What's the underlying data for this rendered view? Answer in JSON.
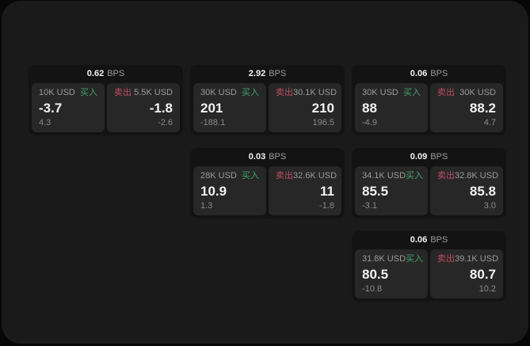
{
  "colors": {
    "outer_bg": "#070707",
    "screen_bg": "#1a1a1a",
    "card_bg": "#131313",
    "panel_bg": "#272727",
    "label_gray": "#9a9a9a",
    "sub_gray": "#8b8b8b",
    "value_white": "#f2f2f2",
    "buy_green": "#41a16b",
    "sell_red": "#bc4d61"
  },
  "labels": {
    "bps_unit": "BPS",
    "buy": "买入",
    "sell": "卖出"
  },
  "cards": [
    {
      "row": 1,
      "col": 1,
      "bps": "0.62",
      "buy": {
        "amount": "10K USD",
        "value": "-3.7",
        "sub": "4.3"
      },
      "sell": {
        "amount": "5.5K USD",
        "value": "-1.8",
        "sub": "-2.6"
      }
    },
    {
      "row": 1,
      "col": 2,
      "bps": "2.92",
      "buy": {
        "amount": "30K USD",
        "value": "201",
        "sub": "-188.1"
      },
      "sell": {
        "amount": "30.1K USD",
        "value": "210",
        "sub": "196.5"
      }
    },
    {
      "row": 1,
      "col": 3,
      "bps": "0.06",
      "buy": {
        "amount": "30K USD",
        "value": "88",
        "sub": "-4.9"
      },
      "sell": {
        "amount": "30K USD",
        "value": "88.2",
        "sub": "4.7"
      }
    },
    {
      "row": 2,
      "col": 2,
      "bps": "0.03",
      "buy": {
        "amount": "28K USD",
        "value": "10.9",
        "sub": "1.3"
      },
      "sell": {
        "amount": "32.6K USD",
        "value": "11",
        "sub": "-1.8"
      }
    },
    {
      "row": 2,
      "col": 3,
      "bps": "0.09",
      "buy": {
        "amount": "34.1K USD",
        "value": "85.5",
        "sub": "-3.1"
      },
      "sell": {
        "amount": "32.8K USD",
        "value": "85.8",
        "sub": "3.0"
      }
    },
    {
      "row": 3,
      "col": 3,
      "bps": "0.06",
      "buy": {
        "amount": "31.8K USD",
        "value": "80.5",
        "sub": "-10.8"
      },
      "sell": {
        "amount": "39.1K USD",
        "value": "80.7",
        "sub": "10.2"
      }
    }
  ]
}
